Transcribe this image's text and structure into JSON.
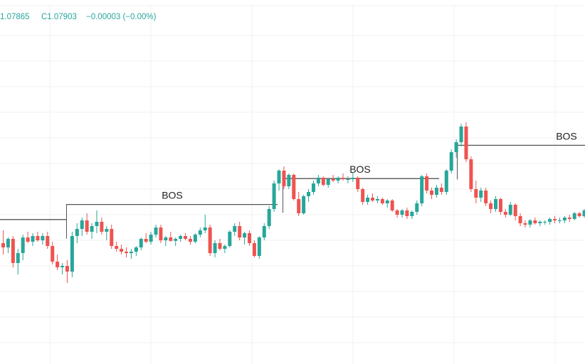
{
  "legend": {
    "low_partial": "1.07865",
    "close": "C1.07903",
    "change": "−0.00003 (−0.00%)",
    "color": "#26a69a"
  },
  "colors": {
    "up": "#26a69a",
    "down": "#ef5350",
    "grid": "#f0f0f0",
    "bos_line": "#555555"
  },
  "chart_data": {
    "type": "candlestick",
    "grid": true,
    "ylim": [
      0,
      100
    ],
    "note_units": "relative price level",
    "candles": [
      [
        42.0,
        46.5,
        38.0,
        40.5
      ],
      [
        40.5,
        44.0,
        38.5,
        43.5
      ],
      [
        43.5,
        44.5,
        33.5,
        35.0
      ],
      [
        35.0,
        40.0,
        31.0,
        38.5
      ],
      [
        38.5,
        45.0,
        36.0,
        44.0
      ],
      [
        44.0,
        46.0,
        42.0,
        42.5
      ],
      [
        42.5,
        45.5,
        41.0,
        44.5
      ],
      [
        44.5,
        46.0,
        42.5,
        43.0
      ],
      [
        43.0,
        45.5,
        41.5,
        44.5
      ],
      [
        44.5,
        46.0,
        40.0,
        41.0
      ],
      [
        41.0,
        42.5,
        34.5,
        35.5
      ],
      [
        35.5,
        38.0,
        32.5,
        33.5
      ],
      [
        33.5,
        35.0,
        31.0,
        34.0
      ],
      [
        34.0,
        36.0,
        28.0,
        32.0
      ],
      [
        32.0,
        46.0,
        30.0,
        44.5
      ],
      [
        44.5,
        49.0,
        42.0,
        47.0
      ],
      [
        47.0,
        51.0,
        44.5,
        50.0
      ],
      [
        50.0,
        52.5,
        45.0,
        46.0
      ],
      [
        46.0,
        49.0,
        43.5,
        48.0
      ],
      [
        48.0,
        53.5,
        45.5,
        49.5
      ],
      [
        49.5,
        51.0,
        45.0,
        46.0
      ],
      [
        46.0,
        48.0,
        43.0,
        47.0
      ],
      [
        47.0,
        48.5,
        40.0,
        41.0
      ],
      [
        41.0,
        42.5,
        39.0,
        40.0
      ],
      [
        40.0,
        41.5,
        38.0,
        39.0
      ],
      [
        39.0,
        40.5,
        37.0,
        38.5
      ],
      [
        38.5,
        40.0,
        36.5,
        39.0
      ],
      [
        39.0,
        41.0,
        37.5,
        40.5
      ],
      [
        40.5,
        44.0,
        39.5,
        43.5
      ],
      [
        43.5,
        45.5,
        42.0,
        42.5
      ],
      [
        42.5,
        46.0,
        41.5,
        45.0
      ],
      [
        45.0,
        48.5,
        44.0,
        47.5
      ],
      [
        47.5,
        48.5,
        42.0,
        43.0
      ],
      [
        43.0,
        44.5,
        41.0,
        44.0
      ],
      [
        44.0,
        46.0,
        42.5,
        42.8
      ],
      [
        42.8,
        44.0,
        41.0,
        43.5
      ],
      [
        43.5,
        45.0,
        42.5,
        44.5
      ],
      [
        44.5,
        45.5,
        43.0,
        43.5
      ],
      [
        43.5,
        44.5,
        41.5,
        42.5
      ],
      [
        42.5,
        45.5,
        42.0,
        45.0
      ],
      [
        45.0,
        47.5,
        44.0,
        46.5
      ],
      [
        46.5,
        52.0,
        45.5,
        47.5
      ],
      [
        47.5,
        48.5,
        37.5,
        38.5
      ],
      [
        38.5,
        43.0,
        37.0,
        42.0
      ],
      [
        42.0,
        43.5,
        39.5,
        40.0
      ],
      [
        40.0,
        41.5,
        38.5,
        41.0
      ],
      [
        41.0,
        46.5,
        40.5,
        46.0
      ],
      [
        46.0,
        49.0,
        44.5,
        48.0
      ],
      [
        48.0,
        49.5,
        43.0,
        44.0
      ],
      [
        44.0,
        46.0,
        41.5,
        45.5
      ],
      [
        45.5,
        46.5,
        41.0,
        42.0
      ],
      [
        42.0,
        43.0,
        37.0,
        37.5
      ],
      [
        37.5,
        44.5,
        36.5,
        44.0
      ],
      [
        44.0,
        49.0,
        43.0,
        48.0
      ],
      [
        48.0,
        55.0,
        47.0,
        54.0
      ],
      [
        54.0,
        64.0,
        53.0,
        63.0
      ],
      [
        63.0,
        68.0,
        60.5,
        67.5
      ],
      [
        67.5,
        69.0,
        61.0,
        62.0
      ],
      [
        62.0,
        66.5,
        61.0,
        66.0
      ],
      [
        66.0,
        66.5,
        57.0,
        57.5
      ],
      [
        57.5,
        60.0,
        51.5,
        52.5
      ],
      [
        52.5,
        59.0,
        52.0,
        58.5
      ],
      [
        58.5,
        61.0,
        56.5,
        60.0
      ],
      [
        60.0,
        64.0,
        59.0,
        63.0
      ],
      [
        63.0,
        66.0,
        62.0,
        65.0
      ],
      [
        65.0,
        65.5,
        62.0,
        62.5
      ],
      [
        62.5,
        65.0,
        61.5,
        64.5
      ],
      [
        64.5,
        66.0,
        63.5,
        64.0
      ],
      [
        64.0,
        65.5,
        63.0,
        65.0
      ],
      [
        65.0,
        66.5,
        64.0,
        64.5
      ],
      [
        64.5,
        65.5,
        63.0,
        64.5
      ],
      [
        64.5,
        67.0,
        63.5,
        65.0
      ],
      [
        65.0,
        65.5,
        60.0,
        61.0
      ],
      [
        61.0,
        61.5,
        55.5,
        56.5
      ],
      [
        56.5,
        59.0,
        55.5,
        58.0
      ],
      [
        58.0,
        59.5,
        56.5,
        57.0
      ],
      [
        57.0,
        58.5,
        56.0,
        57.5
      ],
      [
        57.5,
        58.0,
        55.5,
        56.0
      ],
      [
        56.0,
        57.5,
        54.5,
        57.0
      ],
      [
        57.0,
        57.5,
        53.0,
        53.5
      ],
      [
        53.5,
        54.0,
        51.0,
        52.0
      ],
      [
        52.0,
        54.0,
        51.0,
        53.5
      ],
      [
        53.5,
        54.5,
        50.5,
        51.5
      ],
      [
        51.5,
        53.5,
        50.5,
        53.0
      ],
      [
        53.0,
        57.0,
        52.0,
        56.0
      ],
      [
        56.0,
        66.0,
        55.0,
        65.5
      ],
      [
        65.5,
        66.5,
        59.5,
        60.5
      ],
      [
        60.5,
        61.5,
        57.5,
        59.0
      ],
      [
        59.0,
        62.5,
        58.0,
        61.5
      ],
      [
        61.5,
        63.0,
        59.0,
        60.0
      ],
      [
        60.0,
        68.0,
        59.0,
        67.5
      ],
      [
        67.5,
        75.0,
        66.5,
        74.0
      ],
      [
        74.0,
        78.5,
        72.0,
        77.5
      ],
      [
        77.5,
        84.0,
        76.0,
        83.0
      ],
      [
        83.0,
        84.5,
        70.5,
        71.5
      ],
      [
        71.5,
        72.5,
        60.0,
        61.0
      ],
      [
        61.0,
        64.0,
        56.0,
        58.0
      ],
      [
        58.0,
        61.5,
        56.5,
        60.5
      ],
      [
        60.5,
        61.5,
        55.0,
        56.0
      ],
      [
        56.0,
        57.0,
        52.5,
        54.0
      ],
      [
        54.0,
        58.5,
        53.0,
        57.5
      ],
      [
        57.5,
        58.0,
        52.0,
        53.0
      ],
      [
        53.0,
        54.0,
        51.0,
        52.0
      ],
      [
        52.0,
        56.5,
        51.5,
        55.5
      ],
      [
        55.5,
        56.0,
        50.0,
        51.5
      ],
      [
        51.5,
        52.5,
        48.0,
        49.0
      ],
      [
        49.0,
        50.0,
        47.5,
        48.5
      ],
      [
        48.5,
        50.5,
        47.5,
        50.0
      ],
      [
        50.0,
        51.0,
        48.5,
        49.0
      ],
      [
        49.0,
        50.0,
        48.0,
        49.5
      ],
      [
        49.5,
        50.0,
        48.5,
        49.5
      ],
      [
        49.5,
        51.0,
        48.5,
        50.5
      ],
      [
        50.5,
        51.5,
        49.0,
        50.0
      ],
      [
        50.0,
        51.0,
        49.0,
        50.0
      ],
      [
        50.0,
        51.5,
        49.0,
        51.0
      ],
      [
        51.0,
        52.0,
        49.5,
        50.5
      ],
      [
        50.5,
        53.0,
        50.0,
        52.5
      ],
      [
        52.5,
        53.0,
        51.0,
        51.5
      ],
      [
        51.5,
        54.0,
        51.0,
        53.5
      ],
      [
        53.5,
        55.0,
        52.5,
        54.5
      ],
      [
        54.5,
        56.0,
        53.5,
        55.5
      ],
      [
        55.5,
        56.5,
        54.0,
        54.5
      ],
      [
        54.5,
        56.0,
        53.0,
        55.0
      ],
      [
        55.0,
        55.5,
        52.0,
        52.5
      ]
    ],
    "bos_levels": [
      {
        "label": "",
        "level": 50.3
      },
      {
        "label": "BOS",
        "level": 55.6
      },
      {
        "label": "BOS",
        "level": 64.7
      },
      {
        "label": "BOS",
        "level": 76.4
      }
    ]
  }
}
